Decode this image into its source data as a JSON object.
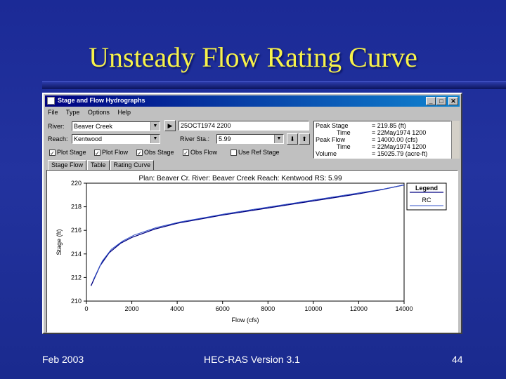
{
  "slide": {
    "title": "Unsteady Flow Rating Curve",
    "footer_left": "Feb 2003",
    "footer_center": "HEC-RAS Version 3.1",
    "footer_right": "44"
  },
  "window": {
    "title": "Stage and Flow Hydrographs",
    "menu": [
      "File",
      "Type",
      "Options",
      "Help"
    ],
    "river_label": "River:",
    "river_value": "Beaver Creek",
    "reach_label": "Reach:",
    "reach_value": "Kentwood",
    "time_value": "25OCT1974 2200",
    "river_sta_label": "River Sta.:",
    "river_sta_value": "5.99",
    "checkboxes": [
      {
        "label": "Plot Stage",
        "checked": true
      },
      {
        "label": "Plot Flow",
        "checked": true
      },
      {
        "label": "Obs Stage",
        "checked": true
      },
      {
        "label": "Obs Flow",
        "checked": true
      },
      {
        "label": "Use Ref Stage",
        "checked": false
      }
    ],
    "stats": [
      {
        "key": "Peak Stage",
        "value": "= 219.85 (ft)"
      },
      {
        "key": "Time",
        "value": "= 22May1974 1200"
      },
      {
        "key": "Peak Flow",
        "value": "= 14000.00 (cfs)"
      },
      {
        "key": "Time",
        "value": "= 22May1974 1200"
      },
      {
        "key": "Volume",
        "value": "= 15025.79 (acre-ft)"
      }
    ],
    "tabs": [
      "Stage Flow",
      "Table",
      "Rating Curve"
    ],
    "active_tab": 2
  },
  "chart_data": {
    "type": "line",
    "title": "Plan: Beaver Cr.   River: Beaver Creek   Reach: Kentwood   RS: 5.99",
    "xlabel": "Flow (cfs)",
    "ylabel": "Stage (ft)",
    "xlim": [
      0,
      14000
    ],
    "ylim": [
      210,
      220
    ],
    "xticks": [
      "0",
      "2000",
      "4000",
      "6000",
      "8000",
      "10000",
      "12000",
      "14000"
    ],
    "yticks": [
      "210",
      "212",
      "214",
      "216",
      "218",
      "220"
    ],
    "legend_title": "Legend",
    "legend_placement": "top-right",
    "series": [
      {
        "name": "RC",
        "color": "#000080",
        "x": [
          200,
          600,
          1000,
          1500,
          2000,
          3000,
          4000,
          5000,
          6000,
          7000,
          8000,
          9000,
          10000,
          11000,
          12000,
          13000,
          14000
        ],
        "y": [
          211.3,
          213.0,
          214.1,
          214.9,
          215.4,
          216.1,
          216.6,
          216.95,
          217.3,
          217.6,
          217.9,
          218.2,
          218.5,
          218.8,
          219.1,
          219.45,
          219.85
        ]
      },
      {
        "name": "",
        "color": "#3050c8",
        "x": [
          300,
          700,
          1100,
          1600,
          2100,
          3100,
          4100,
          5100,
          6100,
          7100,
          8100,
          9100,
          10100,
          11100,
          12100,
          13100,
          14000
        ],
        "y": [
          211.8,
          213.4,
          214.4,
          215.1,
          215.6,
          216.25,
          216.7,
          217.05,
          217.4,
          217.7,
          218.0,
          218.3,
          218.6,
          218.9,
          219.2,
          219.5,
          219.85
        ]
      }
    ]
  }
}
